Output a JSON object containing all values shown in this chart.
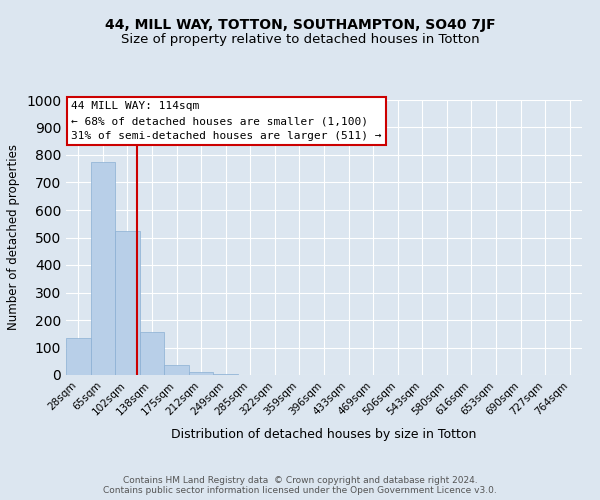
{
  "title": "44, MILL WAY, TOTTON, SOUTHAMPTON, SO40 7JF",
  "subtitle": "Size of property relative to detached houses in Totton",
  "xlabel": "Distribution of detached houses by size in Totton",
  "ylabel": "Number of detached properties",
  "bar_labels": [
    "28sqm",
    "65sqm",
    "102sqm",
    "138sqm",
    "175sqm",
    "212sqm",
    "249sqm",
    "285sqm",
    "322sqm",
    "359sqm",
    "396sqm",
    "433sqm",
    "469sqm",
    "506sqm",
    "543sqm",
    "580sqm",
    "616sqm",
    "653sqm",
    "690sqm",
    "727sqm",
    "764sqm"
  ],
  "bar_values": [
    134,
    775,
    523,
    155,
    35,
    12,
    3,
    0,
    0,
    0,
    0,
    0,
    0,
    0,
    0,
    0,
    0,
    0,
    0,
    0,
    0
  ],
  "bar_color": "#b8cfe8",
  "bar_edge_color": "#8aafd4",
  "bg_color": "#dce6f0",
  "grid_color": "#ffffff",
  "vline_x": 2.37,
  "vline_color": "#cc0000",
  "annotation_text": "44 MILL WAY: 114sqm\n← 68% of detached houses are smaller (1,100)\n31% of semi-detached houses are larger (511) →",
  "annotation_box_color": "#cc0000",
  "ylim": [
    0,
    1000
  ],
  "yticks": [
    0,
    100,
    200,
    300,
    400,
    500,
    600,
    700,
    800,
    900,
    1000
  ],
  "title_fontsize": 10,
  "subtitle_fontsize": 9.5,
  "tick_fontsize": 7.5,
  "ylabel_fontsize": 8.5,
  "xlabel_fontsize": 9,
  "annotation_fontsize": 8,
  "footer_text": "Contains HM Land Registry data  © Crown copyright and database right 2024.\nContains public sector information licensed under the Open Government Licence v3.0."
}
